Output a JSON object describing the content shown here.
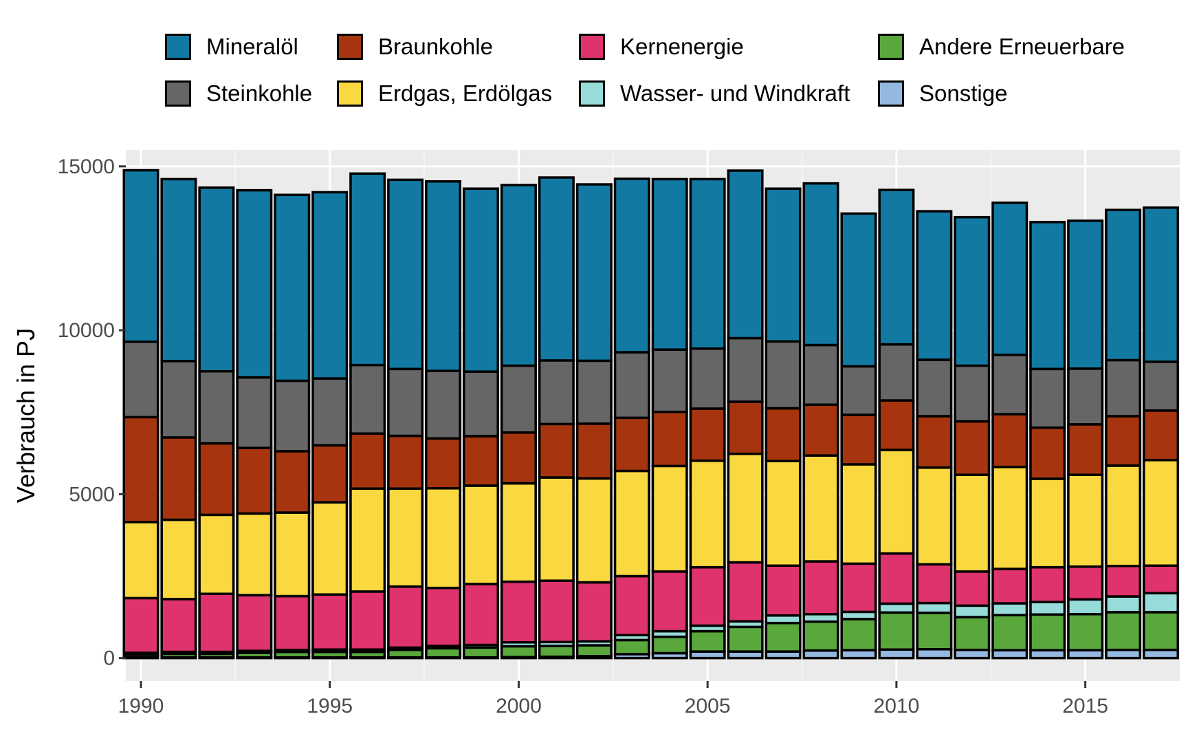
{
  "chart_data": {
    "type": "bar",
    "stacked": true,
    "title": "",
    "xlabel": "",
    "ylabel": "Verbrauch in PJ",
    "ylim": [
      -700,
      15500
    ],
    "yticks": [
      0,
      5000,
      10000,
      15000
    ],
    "xticks": [
      1990,
      1995,
      2000,
      2005,
      2010,
      2015
    ],
    "xlim": [
      1989.6,
      2017.5
    ],
    "grid": true,
    "legend_position": "top",
    "categories": [
      1990,
      1991,
      1992,
      1993,
      1994,
      1995,
      1996,
      1997,
      1998,
      1999,
      2000,
      2001,
      2002,
      2003,
      2004,
      2005,
      2006,
      2007,
      2008,
      2009,
      2010,
      2011,
      2012,
      2013,
      2014,
      2015,
      2016,
      2017
    ],
    "series": [
      {
        "name": "Sonstige",
        "color": "#95b8e0",
        "values": [
          20,
          20,
          20,
          20,
          20,
          20,
          20,
          20,
          20,
          20,
          30,
          40,
          60,
          120,
          150,
          200,
          200,
          200,
          230,
          240,
          260,
          270,
          250,
          240,
          240,
          240,
          250,
          250
        ]
      },
      {
        "name": "Andere Erneuerbare",
        "color": "#5aa83c",
        "values": [
          80,
          110,
          110,
          140,
          170,
          170,
          170,
          230,
          280,
          300,
          330,
          330,
          330,
          430,
          500,
          620,
          750,
          870,
          880,
          950,
          1130,
          1110,
          1000,
          1070,
          1090,
          1100,
          1150,
          1150
        ]
      },
      {
        "name": "Wasser- und Windkraft",
        "color": "#98dcd9",
        "values": [
          60,
          60,
          60,
          60,
          60,
          70,
          70,
          70,
          70,
          80,
          120,
          120,
          120,
          150,
          170,
          170,
          170,
          230,
          230,
          220,
          270,
          300,
          350,
          360,
          380,
          450,
          480,
          580
        ]
      },
      {
        "name": "Kernenergie",
        "color": "#de336d",
        "values": [
          1670,
          1610,
          1770,
          1700,
          1640,
          1680,
          1770,
          1860,
          1770,
          1860,
          1850,
          1870,
          1800,
          1800,
          1820,
          1780,
          1800,
          1520,
          1610,
          1470,
          1530,
          1180,
          1040,
          1050,
          1060,
          1000,
          930,
          840
        ]
      },
      {
        "name": "Erdgas, Erdölgas",
        "color": "#fad840",
        "values": [
          2320,
          2420,
          2410,
          2490,
          2550,
          2810,
          3140,
          2990,
          3040,
          3000,
          3000,
          3150,
          3170,
          3210,
          3220,
          3250,
          3310,
          3190,
          3230,
          3030,
          3160,
          2950,
          2950,
          3110,
          2700,
          2800,
          3060,
          3220
        ]
      },
      {
        "name": "Braunkohle",
        "color": "#a6350f",
        "values": [
          3200,
          2510,
          2180,
          2000,
          1870,
          1740,
          1680,
          1610,
          1520,
          1510,
          1550,
          1630,
          1670,
          1620,
          1650,
          1590,
          1590,
          1610,
          1550,
          1510,
          1510,
          1570,
          1630,
          1610,
          1560,
          1540,
          1510,
          1510
        ]
      },
      {
        "name": "Steinkohle",
        "color": "#666666",
        "values": [
          2300,
          2330,
          2200,
          2150,
          2150,
          2040,
          2090,
          2040,
          2060,
          1970,
          2040,
          1940,
          1920,
          2000,
          1900,
          1830,
          1940,
          2040,
          1820,
          1480,
          1710,
          1720,
          1700,
          1810,
          1790,
          1700,
          1710,
          1490
        ]
      },
      {
        "name": "Mineralöl",
        "color": "#127aa2",
        "values": [
          5230,
          5550,
          5600,
          5710,
          5670,
          5680,
          5840,
          5770,
          5780,
          5580,
          5510,
          5580,
          5380,
          5290,
          5200,
          5170,
          5110,
          4660,
          4930,
          4660,
          4710,
          4530,
          4530,
          4640,
          4480,
          4510,
          4580,
          4700
        ]
      }
    ]
  },
  "legend": {
    "items": [
      {
        "label": "Mineralöl",
        "color": "#127aa2"
      },
      {
        "label": "Steinkohle",
        "color": "#666666"
      },
      {
        "label": "Braunkohle",
        "color": "#a6350f"
      },
      {
        "label": "Erdgas, Erdölgas",
        "color": "#fad840"
      },
      {
        "label": "Kernenergie",
        "color": "#de336d"
      },
      {
        "label": "Wasser- und Windkraft",
        "color": "#98dcd9"
      },
      {
        "label": "Andere Erneuerbare",
        "color": "#5aa83c"
      },
      {
        "label": "Sonstige",
        "color": "#95b8e0"
      }
    ]
  }
}
